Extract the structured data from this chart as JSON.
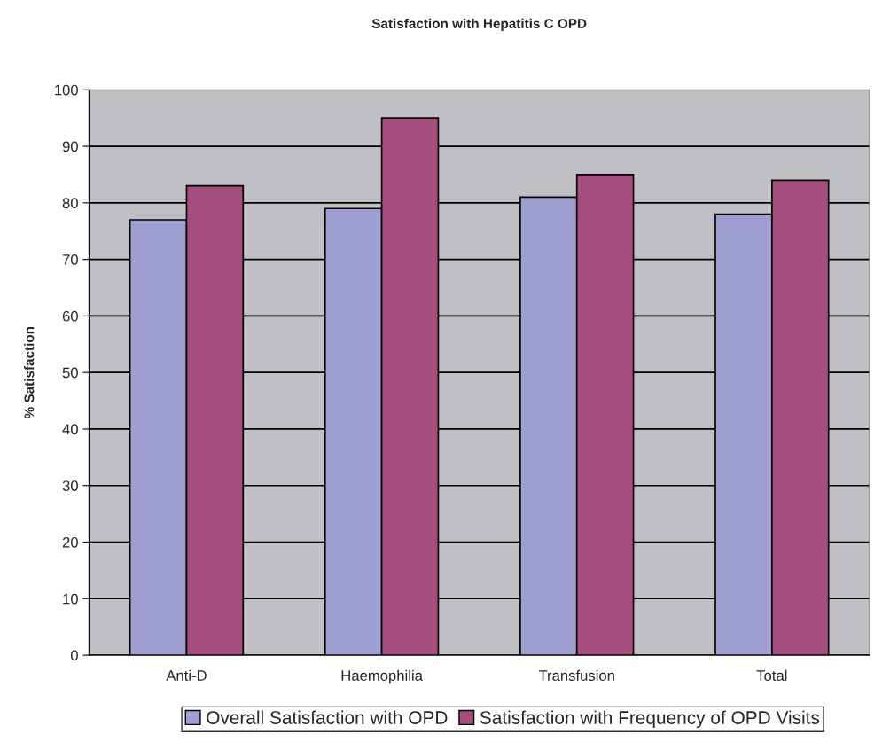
{
  "chart_data": {
    "type": "bar",
    "title": "Satisfaction with Hepatitis C OPD",
    "ylabel": "% Satisfaction",
    "categories": [
      "Anti-D",
      "Haemophilia",
      "Transfusion",
      "Total"
    ],
    "series": [
      {
        "name": "Overall Satisfaction with OPD",
        "color": "#9e9fd0",
        "values": [
          77,
          79,
          81,
          78
        ]
      },
      {
        "name": "Satisfaction with Frequency of OPD Visits",
        "color": "#a64d80",
        "values": [
          83,
          95,
          85,
          84
        ]
      }
    ],
    "ylim": [
      0,
      100
    ],
    "yticks": [
      0,
      10,
      20,
      30,
      40,
      50,
      60,
      70,
      80,
      90,
      100
    ],
    "grid": "y",
    "legend": "bottom"
  }
}
